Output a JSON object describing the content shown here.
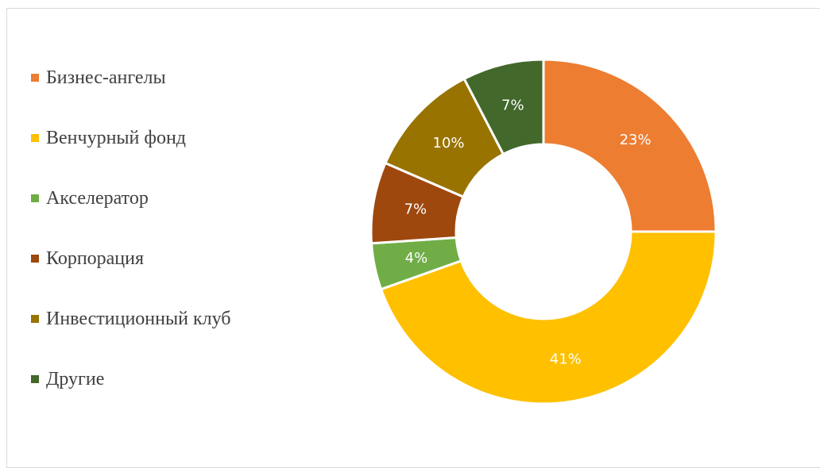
{
  "chart_data": {
    "type": "pie",
    "variant": "donut",
    "title": "",
    "categories": [
      "Бизнес-ангелы",
      "Венчурный фонд",
      "Акселератор",
      "Корпорация",
      "Инвестиционный клуб",
      "Другие"
    ],
    "values": [
      23,
      41,
      4,
      7,
      10,
      7
    ],
    "value_unit": "%",
    "data_labels": [
      "23%",
      "41%",
      "4%",
      "7%",
      "10%",
      "7%"
    ],
    "colors": [
      "#ED7D31",
      "#FFC000",
      "#70AD47",
      "#9E480E",
      "#997300",
      "#43682B"
    ],
    "legend_position": "left",
    "grid": false
  },
  "legend": {
    "items": [
      {
        "label": "Бизнес-ангелы",
        "color": "#ED7D31"
      },
      {
        "label": "Венчурный фонд",
        "color": "#FFC000"
      },
      {
        "label": "Акселератор",
        "color": "#70AD47"
      },
      {
        "label": "Корпорация",
        "color": "#9E480E"
      },
      {
        "label": "Инвестиционный клуб",
        "color": "#997300"
      },
      {
        "label": "Другие",
        "color": "#43682B"
      }
    ]
  }
}
